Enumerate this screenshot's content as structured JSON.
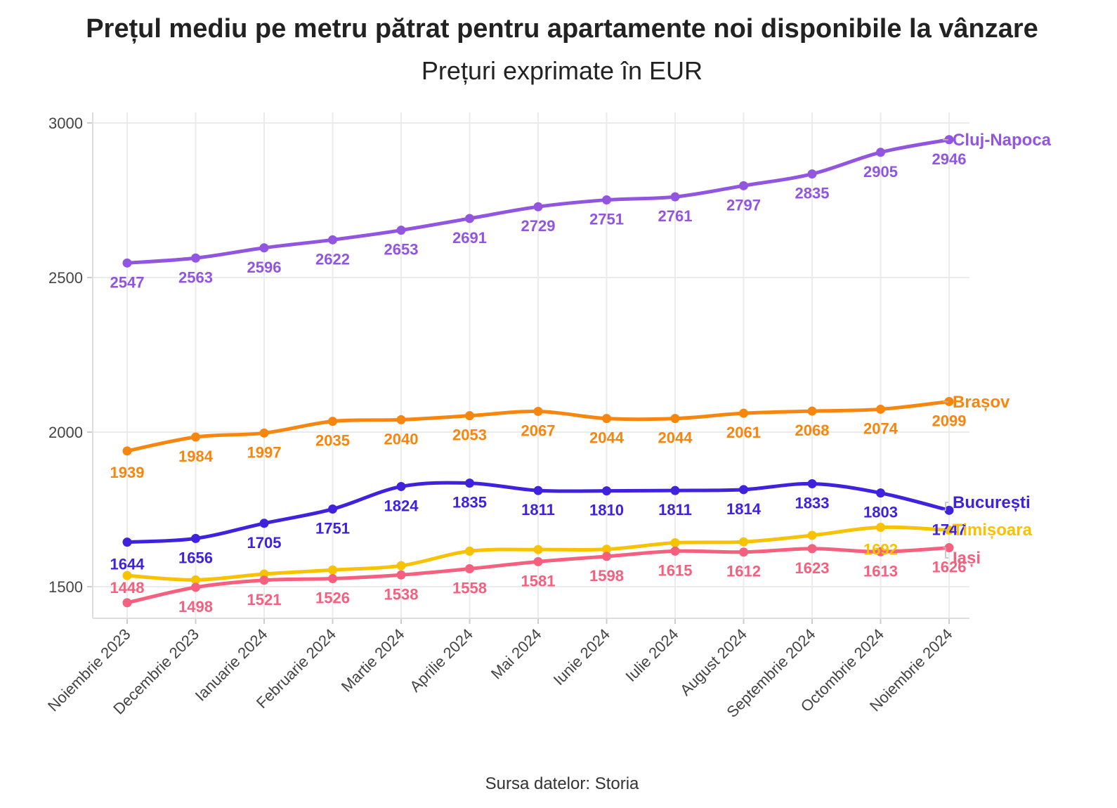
{
  "chart_data": {
    "type": "line",
    "title": "Prețul mediu pe metru pătrat pentru apartamente noi disponibile la vânzare",
    "subtitle": "Prețuri exprimate în EUR",
    "caption": "Sursa datelor: Storia",
    "xlabel": "",
    "ylabel": "",
    "ylim": [
      1400,
      3000
    ],
    "yticks": [
      1500,
      2000,
      2500,
      3000
    ],
    "grid": true,
    "legend": "direct-labels-right",
    "categories": [
      "Noiembrie 2023",
      "Decembrie 2023",
      "Ianuarie 2024",
      "Februarie 2024",
      "Martie 2024",
      "Aprilie 2024",
      "Mai 2024",
      "Iunie 2024",
      "Iulie 2024",
      "August 2024",
      "Septembrie 2024",
      "Octombrie 2024",
      "Noiembrie 2024"
    ],
    "series": [
      {
        "name": "Cluj-Napoca",
        "color": "#9155e0",
        "values": [
          2547,
          2563,
          2596,
          2622,
          2653,
          2691,
          2729,
          2751,
          2761,
          2797,
          2835,
          2905,
          2946
        ]
      },
      {
        "name": "Brașov",
        "color": "#f7860f",
        "values": [
          1939,
          1984,
          1997,
          2035,
          2040,
          2053,
          2067,
          2044,
          2044,
          2061,
          2068,
          2074,
          2099
        ]
      },
      {
        "name": "București",
        "color": "#3e22dd",
        "values": [
          1644,
          1656,
          1705,
          1751,
          1824,
          1835,
          1811,
          1810,
          1811,
          1814,
          1833,
          1803,
          1747
        ]
      },
      {
        "name": "Timișoara",
        "color": "#f7c200",
        "values": [
          1536,
          1522,
          1541,
          1554,
          1568,
          1615,
          1620,
          1621,
          1642,
          1645,
          1666,
          1692,
          1683
        ]
      },
      {
        "name": "Iași",
        "color": "#f4607e",
        "values": [
          1448,
          1498,
          1521,
          1526,
          1538,
          1558,
          1581,
          1598,
          1615,
          1612,
          1623,
          1613,
          1626
        ]
      }
    ],
    "data_labels": {
      "Cluj-Napoca": [
        "2547",
        "2563",
        "2596",
        "2622",
        "2653",
        "2691",
        "2729",
        "2751",
        "2761",
        "2797",
        "2835",
        "2905",
        "2946"
      ],
      "Brașov": [
        "1939",
        "1984",
        "1997",
        "2035",
        "2040",
        "2053",
        "2067",
        "2044",
        "2044",
        "2061",
        "2068",
        "2074",
        "2099"
      ],
      "București": [
        "1644",
        "1656",
        "1705",
        "1751",
        "1824",
        "1835",
        "1811",
        "1810",
        "1811",
        "1814",
        "1833",
        "1803",
        "1747"
      ],
      "Timișoara": [
        "",
        "",
        "",
        "",
        "",
        "",
        "",
        "",
        "",
        "",
        "",
        "1692",
        ""
      ],
      "Iași": [
        "1448",
        "1498",
        "1521",
        "1526",
        "1538",
        "1558",
        "1581",
        "1598",
        "1615",
        "1612",
        "1623",
        "1613",
        "1626"
      ]
    }
  }
}
